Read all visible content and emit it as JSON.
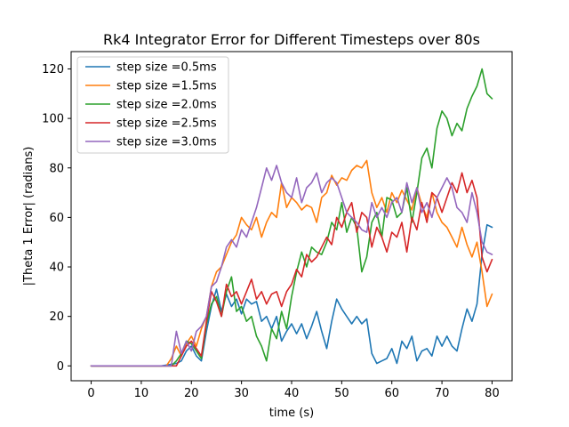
{
  "chart_data": {
    "type": "line",
    "title": "Rk4 Integrator Error for Different Timesteps over 80s",
    "xlabel": "time (s)",
    "ylabel": "|Theta 1 Error| (radians)",
    "xlim": [
      -4,
      84
    ],
    "ylim": [
      -6,
      127
    ],
    "xticks": [
      0,
      10,
      20,
      30,
      40,
      50,
      60,
      70,
      80
    ],
    "yticks": [
      0,
      20,
      40,
      60,
      80,
      100,
      120
    ],
    "grid": false,
    "legend_position": "top-left",
    "series": [
      {
        "name": "step size =0.5ms",
        "color": "#1f77b4",
        "x": [
          0,
          14,
          17,
          18,
          19,
          20,
          21,
          22,
          23,
          24,
          25,
          26,
          27,
          28,
          29,
          30,
          31,
          32,
          33,
          34,
          35,
          36,
          37,
          38,
          39,
          40,
          41,
          42,
          43,
          44,
          45,
          46,
          47,
          48,
          49,
          50,
          51,
          52,
          53,
          54,
          55,
          56,
          57,
          58,
          59,
          60,
          61,
          62,
          63,
          64,
          65,
          66,
          67,
          68,
          69,
          70,
          71,
          72,
          73,
          74,
          75,
          76,
          77,
          78,
          79,
          80
        ],
        "y": [
          0,
          0,
          1,
          2,
          6,
          8,
          4,
          2,
          14,
          24,
          31,
          22,
          29,
          24,
          27,
          21,
          27,
          25,
          26,
          18,
          20,
          15,
          20,
          10,
          14,
          17,
          13,
          17,
          11,
          16,
          22,
          14,
          7,
          18,
          27,
          23,
          20,
          17,
          20,
          17,
          19,
          5,
          1,
          2,
          3,
          7,
          1,
          10,
          7,
          12,
          2,
          6,
          7,
          4,
          12,
          8,
          12,
          8,
          6,
          15,
          23,
          18,
          25,
          45,
          57,
          56
        ]
      },
      {
        "name": "step size =1.5ms",
        "color": "#ff7f0e",
        "x": [
          0,
          15,
          16,
          17,
          18,
          19,
          20,
          21,
          22,
          23,
          24,
          25,
          26,
          27,
          28,
          29,
          30,
          31,
          32,
          33,
          34,
          35,
          36,
          37,
          38,
          39,
          40,
          41,
          42,
          43,
          44,
          45,
          46,
          47,
          48,
          49,
          50,
          51,
          52,
          53,
          54,
          55,
          56,
          57,
          58,
          59,
          60,
          61,
          62,
          63,
          64,
          65,
          66,
          67,
          68,
          69,
          70,
          71,
          72,
          73,
          74,
          75,
          76,
          77,
          78,
          79,
          80
        ],
        "y": [
          0,
          0,
          3,
          8,
          4,
          9,
          12,
          8,
          15,
          20,
          32,
          38,
          40,
          45,
          50,
          53,
          60,
          57,
          55,
          60,
          52,
          58,
          62,
          60,
          74,
          64,
          68,
          66,
          63,
          65,
          64,
          58,
          68,
          70,
          77,
          73,
          76,
          75,
          79,
          81,
          80,
          83,
          70,
          64,
          68,
          62,
          70,
          66,
          71,
          67,
          63,
          72,
          65,
          60,
          70,
          62,
          58,
          56,
          52,
          48,
          56,
          49,
          44,
          50,
          38,
          24,
          29
        ]
      },
      {
        "name": "step size =2.0ms",
        "color": "#2ca02c",
        "x": [
          0,
          16,
          17,
          18,
          19,
          20,
          21,
          22,
          23,
          24,
          25,
          26,
          27,
          28,
          29,
          30,
          31,
          32,
          33,
          34,
          35,
          36,
          37,
          38,
          39,
          40,
          41,
          42,
          43,
          44,
          45,
          46,
          47,
          48,
          49,
          50,
          51,
          52,
          53,
          54,
          55,
          56,
          57,
          58,
          59,
          60,
          61,
          62,
          63,
          64,
          65,
          66,
          67,
          68,
          69,
          70,
          71,
          72,
          73,
          74,
          75,
          76,
          77,
          78,
          79,
          80
        ],
        "y": [
          0,
          0,
          2,
          5,
          10,
          9,
          6,
          3,
          17,
          25,
          28,
          20,
          30,
          36,
          22,
          24,
          18,
          20,
          12,
          8,
          2,
          15,
          11,
          22,
          15,
          28,
          38,
          46,
          40,
          48,
          46,
          45,
          50,
          58,
          55,
          66,
          54,
          60,
          56,
          38,
          44,
          58,
          62,
          52,
          68,
          67,
          60,
          62,
          72,
          58,
          70,
          84,
          88,
          80,
          96,
          103,
          100,
          93,
          98,
          95,
          104,
          109,
          113,
          120,
          110,
          108
        ]
      },
      {
        "name": "step size =2.5ms",
        "color": "#d62728",
        "x": [
          0,
          17,
          18,
          19,
          20,
          21,
          22,
          23,
          24,
          25,
          26,
          27,
          28,
          29,
          30,
          31,
          32,
          33,
          34,
          35,
          36,
          37,
          38,
          39,
          40,
          41,
          42,
          43,
          44,
          45,
          46,
          47,
          48,
          49,
          50,
          51,
          52,
          53,
          54,
          55,
          56,
          57,
          58,
          59,
          60,
          61,
          62,
          63,
          64,
          65,
          66,
          67,
          68,
          69,
          70,
          71,
          72,
          73,
          74,
          75,
          76,
          77,
          78,
          79,
          80
        ],
        "y": [
          0,
          0,
          4,
          8,
          10,
          7,
          4,
          18,
          30,
          26,
          20,
          33,
          28,
          30,
          25,
          30,
          35,
          27,
          30,
          25,
          29,
          30,
          24,
          30,
          33,
          39,
          36,
          45,
          42,
          44,
          48,
          52,
          49,
          60,
          56,
          62,
          66,
          54,
          62,
          60,
          48,
          56,
          52,
          46,
          54,
          52,
          58,
          46,
          60,
          55,
          66,
          58,
          70,
          68,
          62,
          68,
          74,
          70,
          78,
          70,
          75,
          68,
          44,
          38,
          43
        ]
      },
      {
        "name": "step size =3.0ms",
        "color": "#9467bd",
        "x": [
          0,
          16,
          17,
          18,
          19,
          20,
          21,
          22,
          23,
          24,
          25,
          26,
          27,
          28,
          29,
          30,
          31,
          32,
          33,
          34,
          35,
          36,
          37,
          38,
          39,
          40,
          41,
          42,
          43,
          44,
          45,
          46,
          47,
          48,
          49,
          50,
          51,
          52,
          53,
          54,
          55,
          56,
          57,
          58,
          59,
          60,
          61,
          62,
          63,
          64,
          65,
          66,
          67,
          68,
          69,
          70,
          71,
          72,
          73,
          74,
          75,
          76,
          77,
          78,
          79,
          80
        ],
        "y": [
          0,
          0,
          14,
          5,
          10,
          6,
          14,
          16,
          20,
          32,
          34,
          40,
          48,
          51,
          48,
          55,
          52,
          58,
          64,
          72,
          80,
          75,
          81,
          74,
          70,
          68,
          76,
          66,
          72,
          74,
          78,
          70,
          74,
          76,
          74,
          68,
          62,
          60,
          58,
          55,
          54,
          66,
          60,
          64,
          60,
          66,
          68,
          62,
          74,
          66,
          72,
          62,
          66,
          60,
          68,
          72,
          76,
          72,
          64,
          62,
          58,
          70,
          62,
          50,
          46,
          45
        ]
      }
    ]
  }
}
